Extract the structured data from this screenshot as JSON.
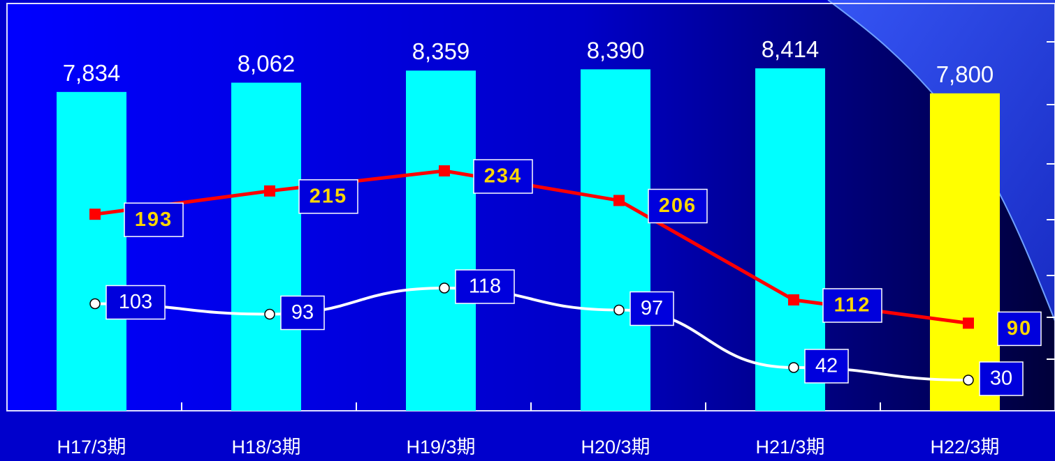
{
  "chart_data": {
    "type": "bar",
    "categories": [
      "H17/3期",
      "H18/3期",
      "H19/3期",
      "H20/3期",
      "H21/3期",
      "H22/3期"
    ],
    "series": [
      {
        "kind": "bar",
        "values": [
          7834,
          8062,
          8359,
          8390,
          8414,
          7800
        ],
        "labels": [
          "7,834",
          "8,062",
          "8,359",
          "8,390",
          "8,414",
          "7,800"
        ],
        "colors": [
          "#00ffff",
          "#00ffff",
          "#00ffff",
          "#00ffff",
          "#00ffff",
          "#ffff00"
        ]
      },
      {
        "kind": "line",
        "color": "#ff0000",
        "marker": "square",
        "values": [
          193,
          215,
          234,
          206,
          112,
          90
        ]
      },
      {
        "kind": "line",
        "color": "#ffffff",
        "marker": "circle",
        "values": [
          103,
          93,
          118,
          97,
          42,
          30
        ]
      }
    ],
    "grid": false,
    "legend": "none"
  },
  "colors": {
    "background_left": "#0000ff",
    "background_right": "#000040",
    "forecast_bar": "#ffff00",
    "actual_bar": "#00ffff",
    "label_box": "#0000dd",
    "red_label_text": "#ffd700"
  }
}
